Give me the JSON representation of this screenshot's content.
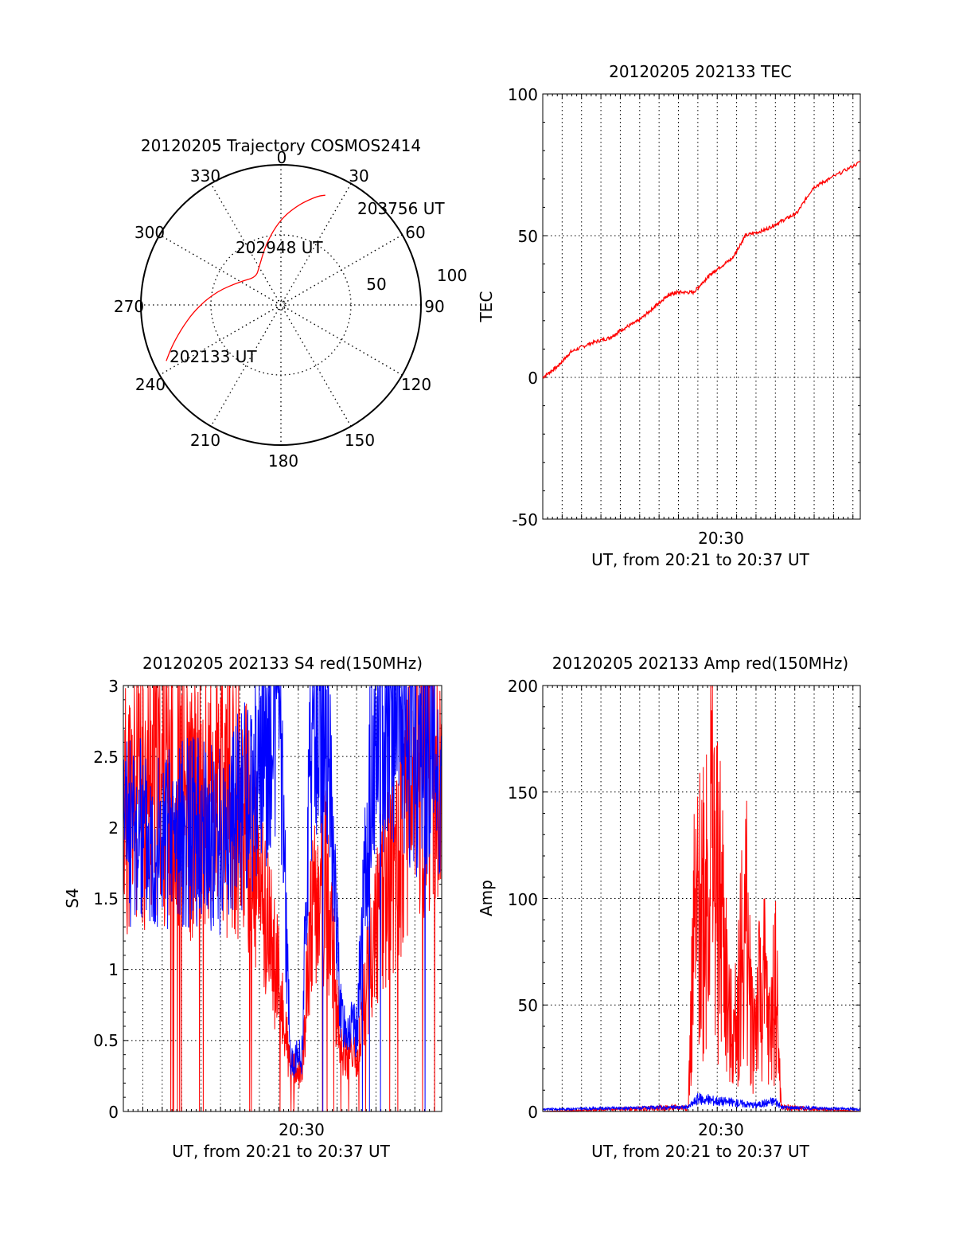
{
  "colors": {
    "red": "#ff0000",
    "blue": "#0000ff",
    "axis": "#000000",
    "grid": "#000000"
  },
  "chart_data": [
    {
      "id": "polar",
      "type": "scatter",
      "projection": "polar",
      "title": "20120205 Trajectory COSMOS2414",
      "azimuth_labels": [
        "0",
        "30",
        "60",
        "90",
        "120",
        "150",
        "180",
        "210",
        "240",
        "270",
        "300",
        "330"
      ],
      "radius_labels": [
        "50",
        "100"
      ],
      "series": [
        {
          "color": "red",
          "points_az_el": [
            [
              244,
              8
            ],
            [
              250,
              16
            ],
            [
              258,
              26
            ],
            [
              268,
              36
            ],
            [
              282,
              48
            ],
            [
              300,
              60
            ],
            [
              318,
              66
            ],
            [
              330,
              62
            ],
            [
              344,
              52
            ],
            [
              354,
              42
            ],
            [
              2,
              33
            ],
            [
              9,
              26
            ],
            [
              14,
              21
            ],
            [
              19,
              16
            ],
            [
              22,
              14
            ]
          ]
        }
      ],
      "annotations": [
        {
          "text": "202133 UT",
          "az": 244,
          "el": 8
        },
        {
          "text": "202948 UT",
          "az": 330,
          "el": 60
        },
        {
          "text": "203756 UT",
          "az": 22,
          "el": 14
        }
      ]
    },
    {
      "id": "tec",
      "type": "line",
      "title": "20120205 202133 TEC",
      "ylabel": "TEC",
      "xlabel": "UT, from 20:21 to 20:37 UT",
      "xtick_label": "20:30",
      "xlim": [
        "20:21:33",
        "20:37:56"
      ],
      "ylim": [
        -50,
        100
      ],
      "yticks": [
        "-50",
        "0",
        "50",
        "100"
      ],
      "grid": true,
      "series": [
        {
          "color": "red",
          "x": [
            "20:21:33",
            "20:22:20",
            "20:23:00",
            "20:24:00",
            "20:25:00",
            "20:25:40",
            "20:26:30",
            "20:27:20",
            "20:28:00",
            "20:28:30",
            "20:29:20",
            "20:30:00",
            "20:30:30",
            "20:31:20",
            "20:32:00",
            "20:33:00",
            "20:33:50",
            "20:34:40",
            "20:35:30",
            "20:36:20",
            "20:37:56"
          ],
          "y": [
            0,
            4,
            9,
            12,
            14,
            17,
            20,
            25,
            29,
            30,
            30,
            35,
            38,
            42,
            50,
            52,
            55,
            58,
            67,
            70,
            76
          ]
        }
      ]
    },
    {
      "id": "s4",
      "type": "line",
      "title": "20120205 202133 S4 red(150MHz)",
      "ylabel": "S4",
      "xlabel": "UT, from 20:21 to 20:37 UT",
      "xtick_label": "20:30",
      "xlim": [
        "20:21:33",
        "20:37:56"
      ],
      "ylim": [
        0,
        3
      ],
      "yticks": [
        "0",
        "0.5",
        "1",
        "1.5",
        "2",
        "2.5",
        "3"
      ],
      "grid": true,
      "series": [
        {
          "color": "red",
          "x_min": [
            0,
            1.8,
            3.6,
            5,
            6,
            6.8,
            7.3,
            8,
            8.6,
            9.2,
            9.6,
            10.4,
            11.2,
            12,
            12.8,
            13.6,
            14.4,
            15.2,
            16,
            16.38
          ],
          "y": [
            2.1,
            2.4,
            2.1,
            2.2,
            2.2,
            1.7,
            1.4,
            0.9,
            0.3,
            0.25,
            1.3,
            1.6,
            0.45,
            0.35,
            1.2,
            1.6,
            2.0,
            2.3,
            2.6,
            1.9
          ]
        },
        {
          "color": "blue",
          "x_min": [
            0,
            1.8,
            3.6,
            5,
            6,
            6.8,
            7.3,
            8,
            8.6,
            9.2,
            9.6,
            10.4,
            11.2,
            12,
            12.8,
            13.6,
            14.4,
            15.2,
            16,
            16.38
          ],
          "y": [
            2.0,
            1.9,
            2.0,
            1.9,
            2.1,
            2.3,
            2.5,
            2.9,
            0.35,
            0.4,
            2.6,
            2.9,
            0.65,
            0.55,
            2.5,
            2.9,
            2.7,
            2.5,
            2.6,
            2.2
          ]
        }
      ]
    },
    {
      "id": "amp",
      "type": "line",
      "title": "20120205 202133 Amp red(150MHz)",
      "ylabel": "Amp",
      "xlabel": "UT, from 20:21 to 20:37 UT",
      "xtick_label": "20:30",
      "xlim": [
        "20:21:33",
        "20:37:56"
      ],
      "ylim": [
        0,
        200
      ],
      "yticks": [
        "0",
        "50",
        "100",
        "150",
        "200"
      ],
      "grid": true,
      "series": [
        {
          "color": "red",
          "x_min": [
            0,
            7.5,
            7.8,
            8.1,
            8.4,
            8.7,
            9.0,
            9.3,
            9.6,
            9.9,
            10.2,
            10.5,
            10.8,
            11.1,
            11.4,
            11.7,
            12.0,
            12.3,
            16.38
          ],
          "y": [
            0,
            2,
            80,
            90,
            120,
            130,
            100,
            90,
            40,
            35,
            70,
            85,
            40,
            50,
            60,
            35,
            65,
            2,
            0
          ]
        },
        {
          "color": "blue",
          "x_min": [
            0,
            7.5,
            8.0,
            9.0,
            10.0,
            11.0,
            12.0,
            12.3,
            16.38
          ],
          "y": [
            1,
            2,
            6,
            5,
            4,
            3,
            5,
            2,
            1
          ]
        }
      ]
    }
  ]
}
